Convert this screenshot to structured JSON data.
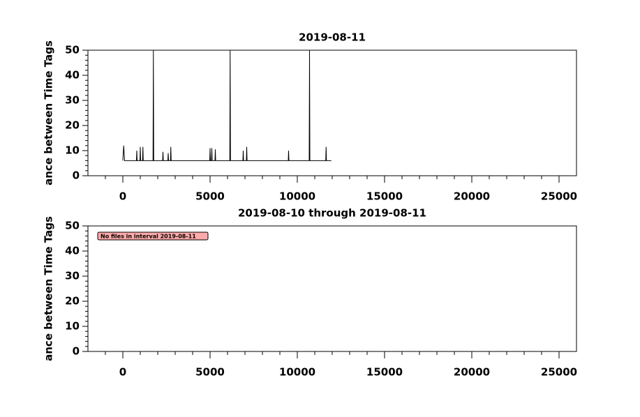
{
  "chart_data": [
    {
      "type": "line",
      "title": "2019-08-11",
      "ylabel": "ance between Time Tags",
      "xlim": [
        -2000,
        26000
      ],
      "ylim": [
        0,
        50
      ],
      "xticks": [
        0,
        5000,
        10000,
        15000,
        20000,
        25000
      ],
      "yticks": [
        0,
        10,
        20,
        30,
        40,
        50
      ],
      "x_minor_ticks": [
        -1000,
        1000,
        2000,
        3000,
        4000,
        6000,
        7000,
        8000,
        9000,
        11000,
        12000,
        13000,
        14000,
        16000,
        17000,
        18000,
        19000,
        21000,
        22000,
        23000,
        24000
      ],
      "y_minor_ticks": [
        2,
        4,
        6,
        8,
        12,
        14,
        16,
        18,
        22,
        24,
        26,
        28,
        32,
        34,
        36,
        38,
        42,
        44,
        46,
        48
      ],
      "x": [
        0,
        50,
        100,
        780,
        800,
        820,
        980,
        1000,
        1020,
        1130,
        1150,
        1170,
        1730,
        1750,
        1770,
        2280,
        2300,
        2320,
        2580,
        2600,
        2620,
        2730,
        2750,
        2770,
        4980,
        5000,
        5020,
        5080,
        5100,
        5120,
        5280,
        5300,
        5320,
        6130,
        6150,
        6170,
        6880,
        6900,
        6920,
        7080,
        7100,
        7120,
        9480,
        9500,
        9520,
        10680,
        10700,
        10720,
        11630,
        11650,
        11670,
        11950
      ],
      "series": [
        {
          "color": "#000000",
          "values": [
            6,
            12,
            6,
            6,
            10,
            6,
            6,
            11.5,
            6,
            6,
            11.5,
            6,
            6,
            50,
            6,
            6,
            9.5,
            6,
            6,
            9,
            6,
            6,
            11.5,
            6,
            6,
            11,
            6,
            6,
            11,
            6,
            6,
            10.5,
            6,
            6,
            50,
            6,
            6,
            10,
            6,
            6,
            11.5,
            6,
            6,
            10,
            6,
            6,
            50,
            6,
            6,
            11.5,
            6,
            6
          ]
        }
      ]
    },
    {
      "type": "line",
      "title": "2019-08-10 through 2019-08-11",
      "ylabel": "ance between Time Tags",
      "xlim": [
        -2000,
        26000
      ],
      "ylim": [
        0,
        50
      ],
      "xticks": [
        0,
        5000,
        10000,
        15000,
        20000,
        25000
      ],
      "yticks": [
        0,
        10,
        20,
        30,
        40,
        50
      ],
      "x_minor_ticks": [
        -1000,
        1000,
        2000,
        3000,
        4000,
        6000,
        7000,
        8000,
        9000,
        11000,
        12000,
        13000,
        14000,
        16000,
        17000,
        18000,
        19000,
        21000,
        22000,
        23000,
        24000
      ],
      "y_minor_ticks": [
        2,
        4,
        6,
        8,
        12,
        14,
        16,
        18,
        22,
        24,
        26,
        28,
        32,
        34,
        36,
        38,
        42,
        44,
        46,
        48
      ],
      "annotation": "No files in interval 2019-08-11",
      "annotation_color": "#ffaaaa",
      "x": [],
      "series": []
    }
  ]
}
